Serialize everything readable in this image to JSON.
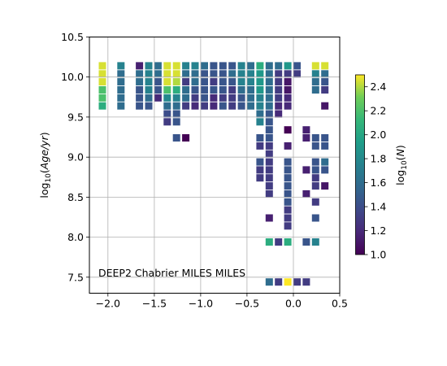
{
  "chart_data": {
    "type": "heatmap",
    "annotation": "DEEP2 Chabrier MILES MILES",
    "ylabel_parts": {
      "pre": "log",
      "sub": "10",
      "open": "(",
      "italic": "Age/yr",
      "close": ")"
    },
    "xlim": [
      -2.2,
      0.5
    ],
    "ylim": [
      7.3,
      10.5
    ],
    "xticks": [
      -2.0,
      -1.5,
      -1.0,
      -0.5,
      0.0,
      0.5
    ],
    "xtick_labels": [
      "−2.0",
      "−1.5",
      "−1.0",
      "−0.5",
      "0.0",
      "0.5"
    ],
    "yticks": [
      7.5,
      8.0,
      8.5,
      9.0,
      9.5,
      10.0,
      10.5
    ],
    "ytick_labels": [
      "7.5",
      "8.0",
      "8.5",
      "9.0",
      "9.5",
      "10.0",
      "10.5"
    ],
    "grid": true,
    "colormap": "viridis",
    "colorbar": {
      "label_parts": {
        "pre": "log",
        "sub": "10",
        "open": "(",
        "italic": "N",
        "close": ")"
      },
      "range": [
        1.0,
        2.5
      ],
      "ticks": [
        1.0,
        1.2,
        1.4,
        1.6,
        1.8,
        2.0,
        2.2,
        2.4
      ],
      "tick_labels": [
        "1.0",
        "1.2",
        "1.4",
        "1.6",
        "1.8",
        "2.0",
        "2.2",
        "2.4"
      ]
    },
    "x_centers": [
      -2.06,
      -1.86,
      -1.66,
      -1.56,
      -1.46,
      -1.36,
      -1.26,
      -1.16,
      -1.06,
      -0.96,
      -0.86,
      -0.76,
      -0.66,
      -0.56,
      -0.46,
      -0.36,
      -0.26,
      -0.16,
      -0.06,
      0.04,
      0.14,
      0.24,
      0.34
    ],
    "y_centers": [
      10.14,
      10.04,
      9.94,
      9.84,
      9.74,
      9.64,
      9.54,
      9.44,
      9.34,
      9.24,
      9.14,
      9.04,
      8.94,
      8.84,
      8.74,
      8.64,
      8.54,
      8.44,
      8.34,
      8.24,
      8.14,
      8.04,
      7.94,
      7.44
    ],
    "cells": [
      {
        "x": -2.06,
        "y": 10.14,
        "v": 2.45
      },
      {
        "x": -2.06,
        "y": 10.04,
        "v": 2.45
      },
      {
        "x": -2.06,
        "y": 9.94,
        "v": 2.45
      },
      {
        "x": -2.06,
        "y": 9.84,
        "v": 2.2
      },
      {
        "x": -2.06,
        "y": 9.74,
        "v": 2.2
      },
      {
        "x": -2.06,
        "y": 9.64,
        "v": 2.05
      },
      {
        "x": -1.86,
        "y": 10.14,
        "v": 1.75
      },
      {
        "x": -1.86,
        "y": 10.04,
        "v": 1.6
      },
      {
        "x": -1.86,
        "y": 9.94,
        "v": 1.6
      },
      {
        "x": -1.86,
        "y": 9.84,
        "v": 1.6
      },
      {
        "x": -1.86,
        "y": 9.74,
        "v": 1.6
      },
      {
        "x": -1.86,
        "y": 9.64,
        "v": 1.6
      },
      {
        "x": -1.66,
        "y": 10.14,
        "v": 1.15
      },
      {
        "x": -1.66,
        "y": 10.04,
        "v": 1.6
      },
      {
        "x": -1.66,
        "y": 9.94,
        "v": 1.6
      },
      {
        "x": -1.66,
        "y": 9.84,
        "v": 1.45
      },
      {
        "x": -1.66,
        "y": 9.74,
        "v": 1.45
      },
      {
        "x": -1.66,
        "y": 9.64,
        "v": 1.45
      },
      {
        "x": -1.56,
        "y": 10.14,
        "v": 1.75
      },
      {
        "x": -1.56,
        "y": 10.04,
        "v": 1.75
      },
      {
        "x": -1.56,
        "y": 9.94,
        "v": 1.75
      },
      {
        "x": -1.56,
        "y": 9.84,
        "v": 1.75
      },
      {
        "x": -1.56,
        "y": 9.74,
        "v": 1.6
      },
      {
        "x": -1.56,
        "y": 9.64,
        "v": 1.45
      },
      {
        "x": -1.46,
        "y": 10.14,
        "v": 1.6
      },
      {
        "x": -1.46,
        "y": 10.04,
        "v": 1.6
      },
      {
        "x": -1.46,
        "y": 9.94,
        "v": 1.45
      },
      {
        "x": -1.46,
        "y": 9.84,
        "v": 1.45
      },
      {
        "x": -1.46,
        "y": 9.74,
        "v": 1.2
      },
      {
        "x": -1.36,
        "y": 10.14,
        "v": 2.45
      },
      {
        "x": -1.36,
        "y": 10.04,
        "v": 2.45
      },
      {
        "x": -1.36,
        "y": 9.94,
        "v": 2.45
      },
      {
        "x": -1.36,
        "y": 9.84,
        "v": 2.2
      },
      {
        "x": -1.36,
        "y": 9.74,
        "v": 1.8
      },
      {
        "x": -1.36,
        "y": 9.64,
        "v": 1.6
      },
      {
        "x": -1.36,
        "y": 9.54,
        "v": 1.4
      },
      {
        "x": -1.36,
        "y": 9.44,
        "v": 1.3
      },
      {
        "x": -1.26,
        "y": 10.14,
        "v": 2.45
      },
      {
        "x": -1.26,
        "y": 10.04,
        "v": 2.45
      },
      {
        "x": -1.26,
        "y": 9.94,
        "v": 2.4
      },
      {
        "x": -1.26,
        "y": 9.84,
        "v": 2.05
      },
      {
        "x": -1.26,
        "y": 9.74,
        "v": 1.75
      },
      {
        "x": -1.26,
        "y": 9.64,
        "v": 1.6
      },
      {
        "x": -1.26,
        "y": 9.54,
        "v": 1.45
      },
      {
        "x": -1.26,
        "y": 9.44,
        "v": 1.45
      },
      {
        "x": -1.26,
        "y": 9.24,
        "v": 1.45
      },
      {
        "x": -1.16,
        "y": 10.14,
        "v": 1.75
      },
      {
        "x": -1.16,
        "y": 10.04,
        "v": 1.6
      },
      {
        "x": -1.16,
        "y": 9.94,
        "v": 1.3
      },
      {
        "x": -1.16,
        "y": 9.84,
        "v": 1.6
      },
      {
        "x": -1.16,
        "y": 9.74,
        "v": 1.6
      },
      {
        "x": -1.16,
        "y": 9.64,
        "v": 1.3
      },
      {
        "x": -1.16,
        "y": 9.24,
        "v": 1.0
      },
      {
        "x": -1.06,
        "y": 10.14,
        "v": 1.75
      },
      {
        "x": -1.06,
        "y": 10.04,
        "v": 1.6
      },
      {
        "x": -1.06,
        "y": 9.94,
        "v": 1.6
      },
      {
        "x": -1.06,
        "y": 9.84,
        "v": 1.45
      },
      {
        "x": -1.06,
        "y": 9.74,
        "v": 1.3
      },
      {
        "x": -1.06,
        "y": 9.64,
        "v": 1.2
      },
      {
        "x": -0.96,
        "y": 10.14,
        "v": 1.6
      },
      {
        "x": -0.96,
        "y": 10.04,
        "v": 1.45
      },
      {
        "x": -0.96,
        "y": 9.94,
        "v": 1.45
      },
      {
        "x": -0.96,
        "y": 9.84,
        "v": 1.45
      },
      {
        "x": -0.96,
        "y": 9.74,
        "v": 1.45
      },
      {
        "x": -0.96,
        "y": 9.64,
        "v": 1.3
      },
      {
        "x": -0.86,
        "y": 10.14,
        "v": 1.45
      },
      {
        "x": -0.86,
        "y": 10.04,
        "v": 1.45
      },
      {
        "x": -0.86,
        "y": 9.94,
        "v": 1.3
      },
      {
        "x": -0.86,
        "y": 9.84,
        "v": 1.45
      },
      {
        "x": -0.86,
        "y": 9.74,
        "v": 1.2
      },
      {
        "x": -0.86,
        "y": 9.64,
        "v": 1.2
      },
      {
        "x": -0.76,
        "y": 10.14,
        "v": 1.45
      },
      {
        "x": -0.76,
        "y": 10.04,
        "v": 1.45
      },
      {
        "x": -0.76,
        "y": 9.94,
        "v": 1.45
      },
      {
        "x": -0.76,
        "y": 9.84,
        "v": 1.45
      },
      {
        "x": -0.76,
        "y": 9.74,
        "v": 1.3
      },
      {
        "x": -0.76,
        "y": 9.64,
        "v": 1.45
      },
      {
        "x": -0.66,
        "y": 10.14,
        "v": 1.45
      },
      {
        "x": -0.66,
        "y": 10.04,
        "v": 1.6
      },
      {
        "x": -0.66,
        "y": 9.94,
        "v": 1.45
      },
      {
        "x": -0.66,
        "y": 9.84,
        "v": 1.3
      },
      {
        "x": -0.66,
        "y": 9.74,
        "v": 1.3
      },
      {
        "x": -0.66,
        "y": 9.64,
        "v": 1.3
      },
      {
        "x": -0.56,
        "y": 10.14,
        "v": 1.75
      },
      {
        "x": -0.56,
        "y": 10.04,
        "v": 1.75
      },
      {
        "x": -0.56,
        "y": 9.94,
        "v": 1.75
      },
      {
        "x": -0.56,
        "y": 9.84,
        "v": 1.6
      },
      {
        "x": -0.56,
        "y": 9.74,
        "v": 1.45
      },
      {
        "x": -0.56,
        "y": 9.64,
        "v": 1.45
      },
      {
        "x": -0.46,
        "y": 10.14,
        "v": 1.6
      },
      {
        "x": -0.46,
        "y": 10.04,
        "v": 1.75
      },
      {
        "x": -0.46,
        "y": 9.94,
        "v": 1.75
      },
      {
        "x": -0.46,
        "y": 9.84,
        "v": 1.6
      },
      {
        "x": -0.46,
        "y": 9.74,
        "v": 1.6
      },
      {
        "x": -0.46,
        "y": 9.64,
        "v": 1.6
      },
      {
        "x": -0.36,
        "y": 10.14,
        "v": 2.05
      },
      {
        "x": -0.36,
        "y": 10.04,
        "v": 1.9
      },
      {
        "x": -0.36,
        "y": 9.94,
        "v": 1.9
      },
      {
        "x": -0.36,
        "y": 9.84,
        "v": 1.9
      },
      {
        "x": -0.36,
        "y": 9.74,
        "v": 1.75
      },
      {
        "x": -0.36,
        "y": 9.64,
        "v": 1.75
      },
      {
        "x": -0.36,
        "y": 9.54,
        "v": 1.6
      },
      {
        "x": -0.36,
        "y": 9.44,
        "v": 1.75
      },
      {
        "x": -0.36,
        "y": 9.24,
        "v": 1.45
      },
      {
        "x": -0.36,
        "y": 9.14,
        "v": 1.3
      },
      {
        "x": -0.36,
        "y": 8.94,
        "v": 1.45
      },
      {
        "x": -0.36,
        "y": 8.84,
        "v": 1.3
      },
      {
        "x": -0.36,
        "y": 8.74,
        "v": 1.3
      },
      {
        "x": -0.26,
        "y": 10.14,
        "v": 1.6
      },
      {
        "x": -0.26,
        "y": 10.04,
        "v": 1.6
      },
      {
        "x": -0.26,
        "y": 9.94,
        "v": 1.6
      },
      {
        "x": -0.26,
        "y": 9.84,
        "v": 1.6
      },
      {
        "x": -0.26,
        "y": 9.74,
        "v": 1.6
      },
      {
        "x": -0.26,
        "y": 9.64,
        "v": 1.6
      },
      {
        "x": -0.26,
        "y": 9.54,
        "v": 1.45
      },
      {
        "x": -0.26,
        "y": 9.44,
        "v": 1.45
      },
      {
        "x": -0.26,
        "y": 9.34,
        "v": 1.45
      },
      {
        "x": -0.26,
        "y": 9.24,
        "v": 1.45
      },
      {
        "x": -0.26,
        "y": 9.14,
        "v": 1.3
      },
      {
        "x": -0.26,
        "y": 9.04,
        "v": 1.3
      },
      {
        "x": -0.26,
        "y": 8.94,
        "v": 1.3
      },
      {
        "x": -0.26,
        "y": 8.84,
        "v": 1.3
      },
      {
        "x": -0.26,
        "y": 8.74,
        "v": 1.3
      },
      {
        "x": -0.26,
        "y": 8.64,
        "v": 1.3
      },
      {
        "x": -0.26,
        "y": 8.54,
        "v": 1.3
      },
      {
        "x": -0.26,
        "y": 8.24,
        "v": 1.15
      },
      {
        "x": -0.26,
        "y": 7.94,
        "v": 2.05
      },
      {
        "x": -0.26,
        "y": 7.44,
        "v": 1.6
      },
      {
        "x": -0.16,
        "y": 10.14,
        "v": 1.6
      },
      {
        "x": -0.16,
        "y": 10.04,
        "v": 1.3
      },
      {
        "x": -0.16,
        "y": 9.94,
        "v": 1.3
      },
      {
        "x": -0.16,
        "y": 9.84,
        "v": 1.3
      },
      {
        "x": -0.16,
        "y": 9.74,
        "v": 1.3
      },
      {
        "x": -0.16,
        "y": 9.64,
        "v": 1.2
      },
      {
        "x": -0.16,
        "y": 9.54,
        "v": 1.2
      },
      {
        "x": -0.16,
        "y": 7.94,
        "v": 1.3
      },
      {
        "x": -0.16,
        "y": 7.44,
        "v": 1.3
      },
      {
        "x": -0.06,
        "y": 10.14,
        "v": 1.9
      },
      {
        "x": -0.06,
        "y": 10.04,
        "v": 1.3
      },
      {
        "x": -0.06,
        "y": 9.94,
        "v": 1.1
      },
      {
        "x": -0.06,
        "y": 9.84,
        "v": 1.1
      },
      {
        "x": -0.06,
        "y": 9.74,
        "v": 1.2
      },
      {
        "x": -0.06,
        "y": 9.64,
        "v": 1.2
      },
      {
        "x": -0.06,
        "y": 9.34,
        "v": 1.0
      },
      {
        "x": -0.06,
        "y": 9.14,
        "v": 1.15
      },
      {
        "x": -0.06,
        "y": 8.94,
        "v": 1.45
      },
      {
        "x": -0.06,
        "y": 8.84,
        "v": 1.45
      },
      {
        "x": -0.06,
        "y": 8.74,
        "v": 1.45
      },
      {
        "x": -0.06,
        "y": 8.64,
        "v": 1.45
      },
      {
        "x": -0.06,
        "y": 8.54,
        "v": 1.45
      },
      {
        "x": -0.06,
        "y": 8.44,
        "v": 1.45
      },
      {
        "x": -0.06,
        "y": 8.34,
        "v": 1.3
      },
      {
        "x": -0.06,
        "y": 8.24,
        "v": 1.3
      },
      {
        "x": -0.06,
        "y": 8.14,
        "v": 1.3
      },
      {
        "x": -0.06,
        "y": 7.94,
        "v": 2.05
      },
      {
        "x": -0.06,
        "y": 7.44,
        "v": 2.5
      },
      {
        "x": 0.04,
        "y": 10.14,
        "v": 1.45
      },
      {
        "x": 0.04,
        "y": 10.04,
        "v": 1.3
      },
      {
        "x": 0.04,
        "y": 7.44,
        "v": 1.3
      },
      {
        "x": 0.14,
        "y": 9.34,
        "v": 1.15
      },
      {
        "x": 0.14,
        "y": 9.24,
        "v": 1.15
      },
      {
        "x": 0.14,
        "y": 8.84,
        "v": 1.15
      },
      {
        "x": 0.14,
        "y": 8.54,
        "v": 1.15
      },
      {
        "x": 0.14,
        "y": 7.94,
        "v": 1.45
      },
      {
        "x": 0.14,
        "y": 7.44,
        "v": 1.3
      },
      {
        "x": 0.24,
        "y": 10.14,
        "v": 2.45
      },
      {
        "x": 0.24,
        "y": 10.04,
        "v": 1.75
      },
      {
        "x": 0.24,
        "y": 9.94,
        "v": 1.6
      },
      {
        "x": 0.24,
        "y": 9.84,
        "v": 1.6
      },
      {
        "x": 0.24,
        "y": 9.24,
        "v": 1.45
      },
      {
        "x": 0.24,
        "y": 9.14,
        "v": 1.45
      },
      {
        "x": 0.24,
        "y": 8.94,
        "v": 1.45
      },
      {
        "x": 0.24,
        "y": 8.84,
        "v": 1.45
      },
      {
        "x": 0.24,
        "y": 8.74,
        "v": 1.3
      },
      {
        "x": 0.24,
        "y": 8.64,
        "v": 1.3
      },
      {
        "x": 0.24,
        "y": 8.44,
        "v": 1.3
      },
      {
        "x": 0.24,
        "y": 8.24,
        "v": 1.45
      },
      {
        "x": 0.24,
        "y": 7.94,
        "v": 1.75
      },
      {
        "x": 0.34,
        "y": 10.14,
        "v": 2.45
      },
      {
        "x": 0.34,
        "y": 10.04,
        "v": 1.6
      },
      {
        "x": 0.34,
        "y": 9.94,
        "v": 1.45
      },
      {
        "x": 0.34,
        "y": 9.84,
        "v": 1.3
      },
      {
        "x": 0.34,
        "y": 9.64,
        "v": 1.1
      },
      {
        "x": 0.34,
        "y": 9.24,
        "v": 1.45
      },
      {
        "x": 0.34,
        "y": 9.14,
        "v": 1.45
      },
      {
        "x": 0.34,
        "y": 8.94,
        "v": 1.6
      },
      {
        "x": 0.34,
        "y": 8.84,
        "v": 1.45
      },
      {
        "x": 0.34,
        "y": 8.64,
        "v": 1.1
      }
    ]
  }
}
